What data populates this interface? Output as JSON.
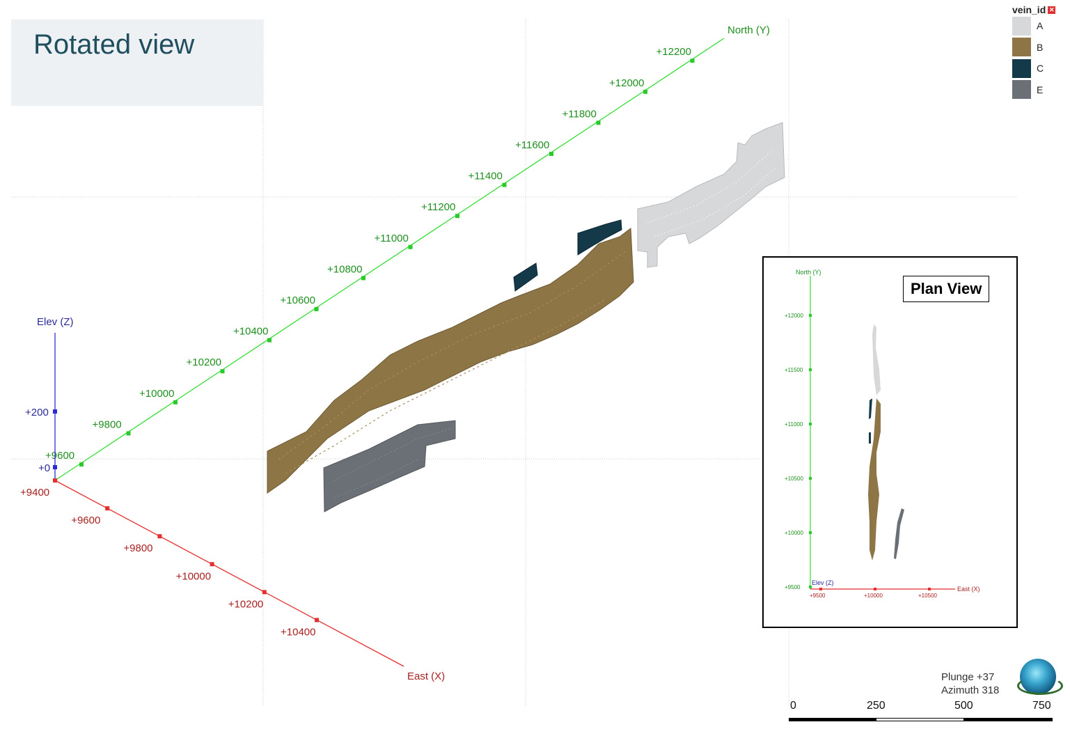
{
  "title": "Rotated view",
  "legend": {
    "title": "vein_id",
    "items": [
      {
        "label": "A",
        "color": "#d6d8da"
      },
      {
        "label": "B",
        "color": "#8d7545"
      },
      {
        "label": "C",
        "color": "#143a4a"
      },
      {
        "label": "E",
        "color": "#6b7076"
      }
    ]
  },
  "axes": {
    "north": {
      "label": "North (Y)",
      "color": "#33dd33",
      "ticks": [
        "+9600",
        "+9800",
        "+10000",
        "+10200",
        "+10400",
        "+10600",
        "+10800",
        "+11000",
        "+11200",
        "+11400",
        "+11600",
        "+11800",
        "+12000",
        "+12200"
      ]
    },
    "east": {
      "label": "East (X)",
      "color": "#e52f2f",
      "ticks": [
        "+9400",
        "+9600",
        "+9800",
        "+10000",
        "+10200",
        "+10400"
      ]
    },
    "elev": {
      "label": "Elev (Z)",
      "color": "#2b2bd6",
      "ticks": [
        "+0",
        "+200"
      ]
    }
  },
  "plan_view": {
    "label": "Plan View",
    "north_label": "North (Y)",
    "east_label": "East (X)",
    "elev_label": "Elev (Z)",
    "y_ticks": [
      "+12000",
      "+11500",
      "+11000",
      "+10500",
      "+10000",
      "+9500"
    ],
    "x_ticks": [
      "+9500",
      "+10000",
      "+10500"
    ]
  },
  "orientation": {
    "plunge": "Plunge +37",
    "azimuth": "Azimuth 318"
  },
  "scale_bar": {
    "labels": [
      "0",
      "250",
      "500",
      "750"
    ]
  }
}
